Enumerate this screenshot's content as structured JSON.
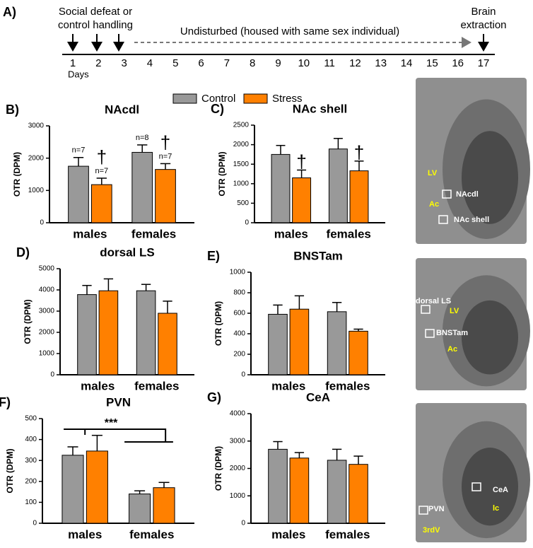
{
  "timeline": {
    "panel": "A)",
    "days": [
      1,
      2,
      3,
      4,
      5,
      6,
      7,
      8,
      9,
      10,
      11,
      12,
      13,
      14,
      15,
      16,
      17
    ],
    "days_label": "Days",
    "start_event": [
      "Social defeat or",
      "control handling"
    ],
    "middle_event": "Undisturbed (housed with same sex individual)",
    "end_event": [
      "Brain",
      "extraction"
    ]
  },
  "chart_data": [
    {
      "type": "bar",
      "panel": "B)",
      "title": "NAcdl",
      "y_label": "OTR (DPM)",
      "categories": [
        "males",
        "females"
      ],
      "ylim": [
        0,
        3000
      ],
      "yticks": [
        0,
        1000,
        2000,
        3000
      ],
      "series": [
        {
          "name": "Control",
          "color": "#999999",
          "values": [
            1750,
            2180
          ],
          "errors": [
            270,
            230
          ],
          "n_labels": [
            "n=7",
            "n=8"
          ]
        },
        {
          "name": "Stress",
          "color": "#ff8000",
          "values": [
            1180,
            1650
          ],
          "errors": [
            200,
            180
          ],
          "n_labels": [
            "n=7",
            "n=7"
          ],
          "markers": [
            "†",
            "†"
          ]
        }
      ]
    },
    {
      "type": "bar",
      "panel": "C)",
      "title": "NAc shell",
      "y_label": "OTR (DPM)",
      "categories": [
        "males",
        "females"
      ],
      "ylim": [
        0,
        2500
      ],
      "yticks": [
        0,
        500,
        1000,
        1500,
        2000,
        2500
      ],
      "series": [
        {
          "name": "Control",
          "color": "#999999",
          "values": [
            1750,
            1890
          ],
          "errors": [
            230,
            270
          ]
        },
        {
          "name": "Stress",
          "color": "#ff8000",
          "values": [
            1150,
            1330
          ],
          "errors": [
            200,
            250
          ],
          "markers": [
            "†",
            "†"
          ]
        }
      ]
    },
    {
      "type": "bar",
      "panel": "D)",
      "title": "dorsal LS",
      "y_label": "OTR (DPM)",
      "categories": [
        "males",
        "females"
      ],
      "ylim": [
        0,
        5000
      ],
      "yticks": [
        0,
        1000,
        2000,
        3000,
        4000,
        5000
      ],
      "series": [
        {
          "name": "Control",
          "color": "#999999",
          "values": [
            3780,
            3960
          ],
          "errors": [
            430,
            300
          ]
        },
        {
          "name": "Stress",
          "color": "#ff8000",
          "values": [
            3960,
            2900
          ],
          "errors": [
            560,
            570
          ]
        }
      ]
    },
    {
      "type": "bar",
      "panel": "E)",
      "title": "BNSTam",
      "y_label": "OTR (DPM)",
      "categories": [
        "males",
        "females"
      ],
      "ylim": [
        0,
        1000
      ],
      "yticks": [
        0,
        200,
        400,
        600,
        800,
        1000
      ],
      "series": [
        {
          "name": "Control",
          "color": "#999999",
          "values": [
            590,
            615
          ],
          "errors": [
            90,
            90
          ]
        },
        {
          "name": "Stress",
          "color": "#ff8000",
          "values": [
            640,
            425
          ],
          "errors": [
            130,
            20
          ]
        }
      ]
    },
    {
      "type": "bar",
      "panel": "F)",
      "title": "PVN",
      "y_label": "OTR (DPM)",
      "categories": [
        "males",
        "females"
      ],
      "ylim": [
        0,
        500
      ],
      "yticks": [
        0,
        100,
        200,
        300,
        400,
        500
      ],
      "annotation": "***",
      "series": [
        {
          "name": "Control",
          "color": "#999999",
          "values": [
            325,
            140
          ],
          "errors": [
            40,
            15
          ]
        },
        {
          "name": "Stress",
          "color": "#ff8000",
          "values": [
            345,
            170
          ],
          "errors": [
            75,
            25
          ]
        }
      ]
    },
    {
      "type": "bar",
      "panel": "G)",
      "title": "CeA",
      "y_label": "OTR (DPM)",
      "categories": [
        "males",
        "females"
      ],
      "ylim": [
        0,
        4000
      ],
      "yticks": [
        0,
        1000,
        2000,
        3000,
        4000
      ],
      "series": [
        {
          "name": "Control",
          "color": "#999999",
          "values": [
            2700,
            2300
          ],
          "errors": [
            280,
            400
          ]
        },
        {
          "name": "Stress",
          "color": "#ff8000",
          "values": [
            2380,
            2150
          ],
          "errors": [
            200,
            300
          ]
        }
      ]
    }
  ],
  "images": [
    {
      "labels": [
        {
          "text": "LV",
          "color": "#ffff00"
        },
        {
          "text": "Ac",
          "color": "#ffff00"
        },
        {
          "text": "NAcdl",
          "color": "#ffffff"
        },
        {
          "text": "NAc shell",
          "color": "#ffffff"
        }
      ]
    },
    {
      "labels": [
        {
          "text": "dorsal LS",
          "color": "#ffffff"
        },
        {
          "text": "LV",
          "color": "#ffff00"
        },
        {
          "text": "BNSTam",
          "color": "#ffffff"
        },
        {
          "text": "Ac",
          "color": "#ffff00"
        }
      ]
    },
    {
      "labels": [
        {
          "text": "PVN",
          "color": "#ffffff"
        },
        {
          "text": "3rdV",
          "color": "#ffff00"
        },
        {
          "text": "CeA",
          "color": "#ffffff"
        },
        {
          "text": "lc",
          "color": "#ffff00"
        }
      ]
    }
  ]
}
